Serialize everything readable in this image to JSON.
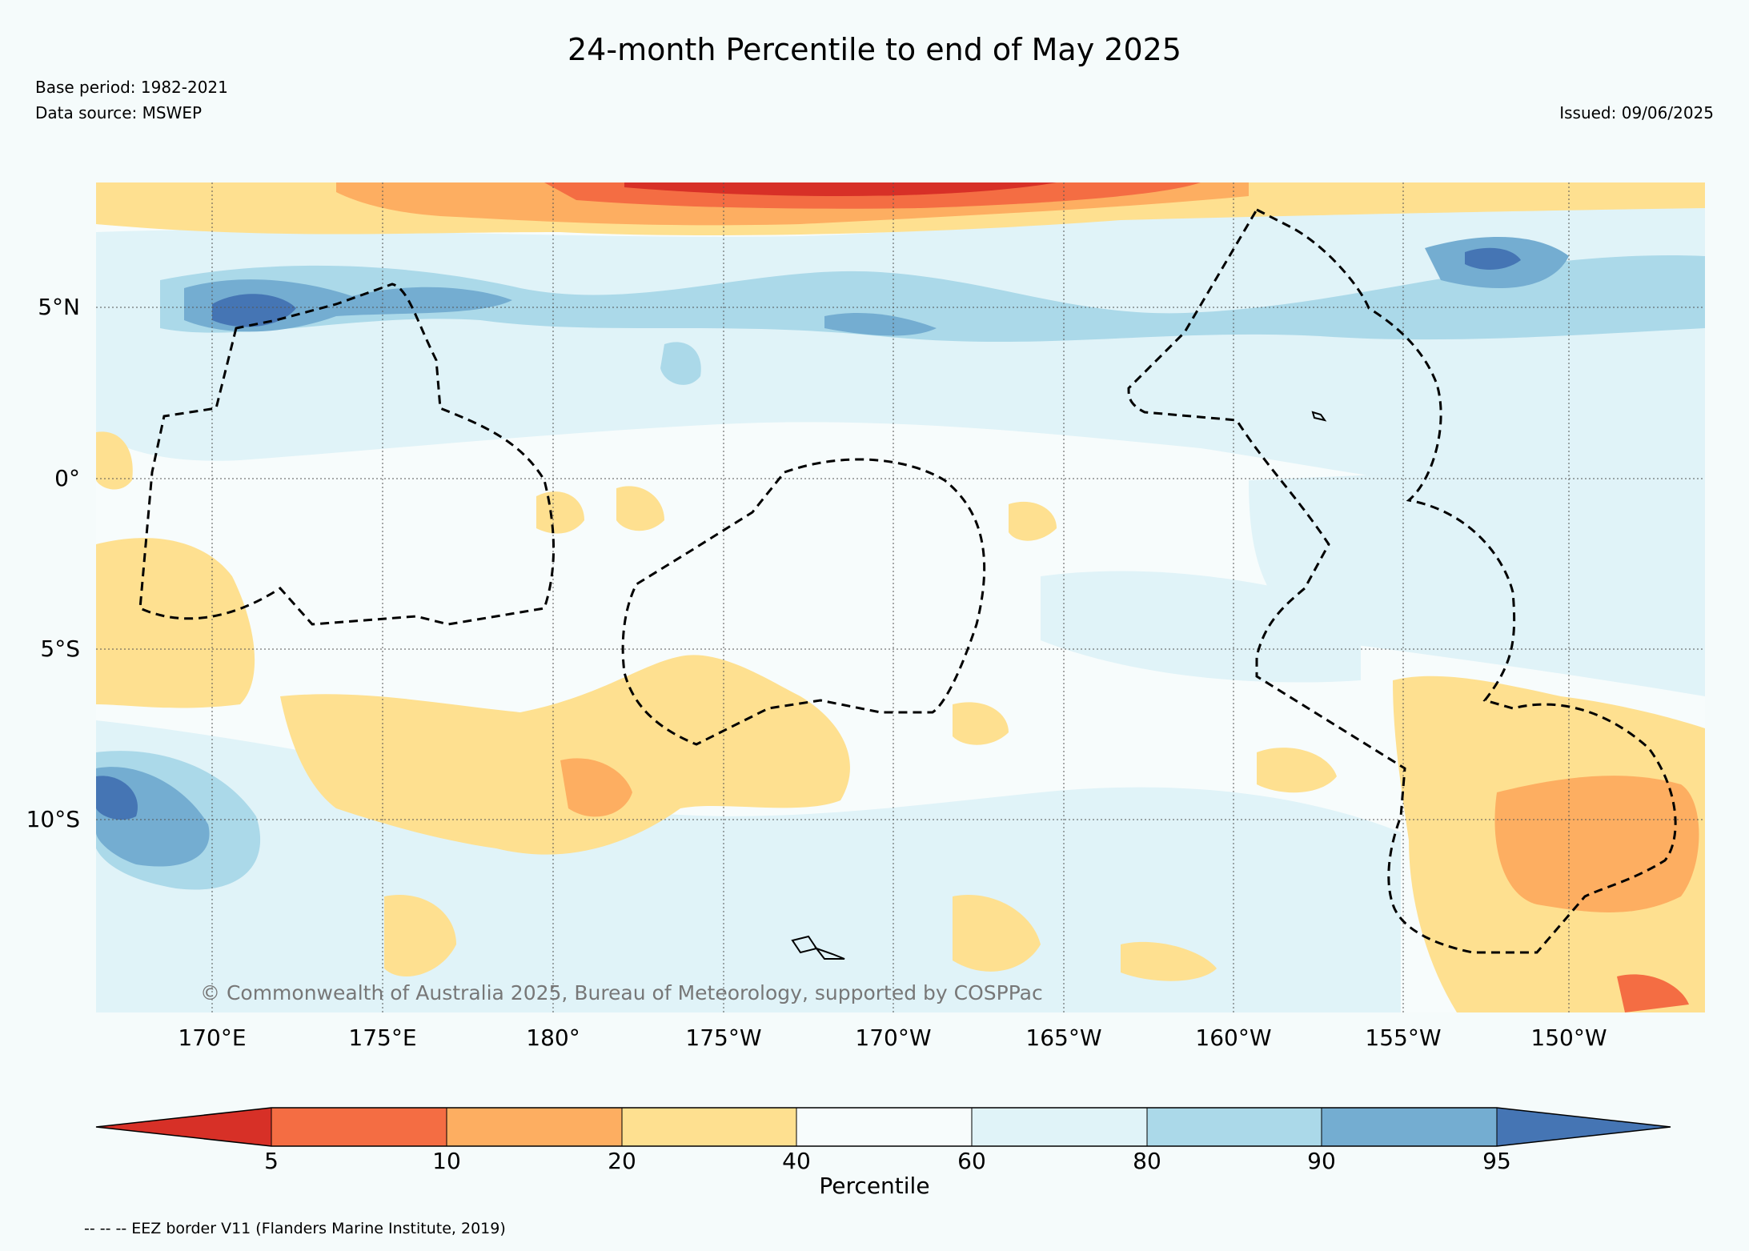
{
  "header": {
    "title": "24-month Percentile to end of May 2025",
    "base_period": "Base period: 1982-2021",
    "data_source": "Data source: MSWEP",
    "issued": "Issued: 09/06/2025"
  },
  "map": {
    "lat_labels": [
      "5°N",
      "0°",
      "5°S",
      "10°S"
    ],
    "lon_labels": [
      "170°E",
      "175°E",
      "180°",
      "175°W",
      "170°W",
      "165°W",
      "160°W",
      "155°W",
      "150°W"
    ],
    "copyright": "© Commonwealth of Australia 2025, Bureau of Meteorology, supported by COSPPac",
    "colors": {
      "p0_5": "#d73027",
      "p5_10": "#f46d43",
      "p10_20": "#fdae61",
      "p20_40": "#fee090",
      "p40_60": "#f7fcfc",
      "p60_80": "#e0f3f8",
      "p80_90": "#abd9e9",
      "p90_95": "#74add1",
      "p95_100": "#4575b4"
    }
  },
  "colorbar": {
    "ticks": [
      "5",
      "10",
      "20",
      "40",
      "60",
      "80",
      "90",
      "95"
    ],
    "label": "Percentile"
  },
  "legend": {
    "eez_note": "-- -- -- EEZ border V11 (Flanders Marine Institute, 2019)"
  }
}
